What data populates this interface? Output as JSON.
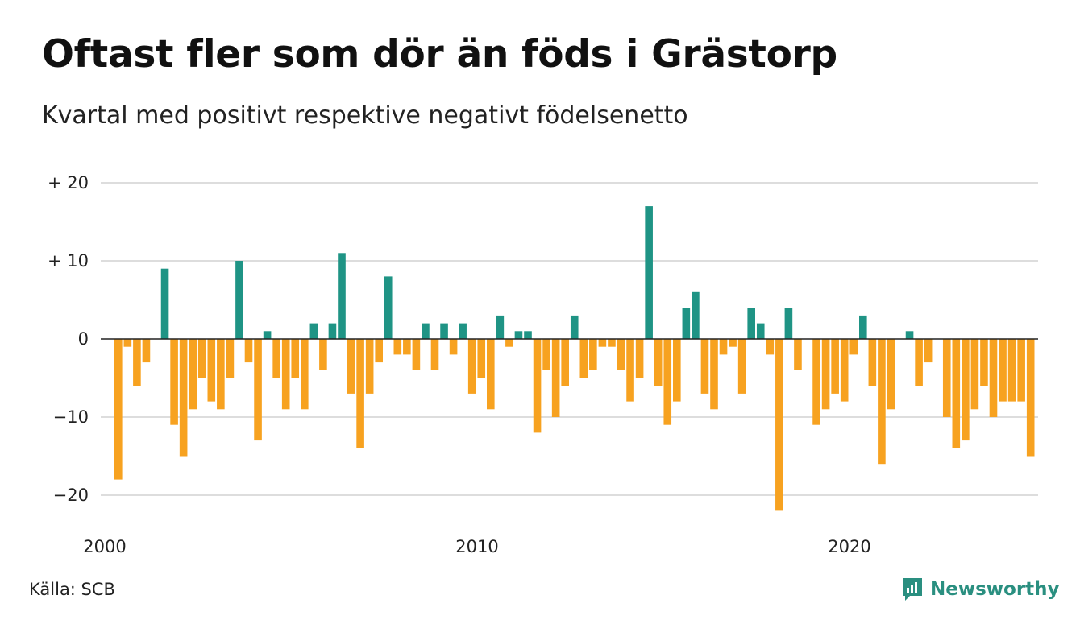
{
  "title": "Oftast fler som dör än föds i Grästorp",
  "subtitle": "Kvartal med positivt respektive negativt födelsenetto",
  "source": "Källa: SCB",
  "brand": "Newsworthy",
  "brand_icon": "newsworthy-logo-icon",
  "colors": {
    "positive": "#1f9485",
    "negative": "#f7a220",
    "grid": "#dddddd",
    "zero": "#222222"
  },
  "chart_data": {
    "type": "bar",
    "xlabel": "",
    "ylabel": "",
    "ylim": [
      -24,
      21
    ],
    "yticks": [
      {
        "value": 20,
        "label": "+ 20"
      },
      {
        "value": 10,
        "label": "+ 10"
      },
      {
        "value": 0,
        "label": "0"
      },
      {
        "value": -10,
        "label": "−10"
      },
      {
        "value": -20,
        "label": "−20"
      }
    ],
    "xticks": [
      {
        "value": 2000,
        "label": "2000"
      },
      {
        "value": 2010,
        "label": "2010"
      },
      {
        "value": 2020,
        "label": "2020"
      }
    ],
    "x_start": "2000 Q1",
    "x_end": "2024 Q4",
    "categories": [
      "2000 Q1",
      "2000 Q2",
      "2000 Q3",
      "2000 Q4",
      "2001 Q1",
      "2001 Q2",
      "2001 Q3",
      "2001 Q4",
      "2002 Q1",
      "2002 Q2",
      "2002 Q3",
      "2002 Q4",
      "2003 Q1",
      "2003 Q2",
      "2003 Q3",
      "2003 Q4",
      "2004 Q1",
      "2004 Q2",
      "2004 Q3",
      "2004 Q4",
      "2005 Q1",
      "2005 Q2",
      "2005 Q3",
      "2005 Q4",
      "2006 Q1",
      "2006 Q2",
      "2006 Q3",
      "2006 Q4",
      "2007 Q1",
      "2007 Q2",
      "2007 Q3",
      "2007 Q4",
      "2008 Q1",
      "2008 Q2",
      "2008 Q3",
      "2008 Q4",
      "2009 Q1",
      "2009 Q2",
      "2009 Q3",
      "2009 Q4",
      "2010 Q1",
      "2010 Q2",
      "2010 Q3",
      "2010 Q4",
      "2011 Q1",
      "2011 Q2",
      "2011 Q3",
      "2011 Q4",
      "2012 Q1",
      "2012 Q2",
      "2012 Q3",
      "2012 Q4",
      "2013 Q1",
      "2013 Q2",
      "2013 Q3",
      "2013 Q4",
      "2014 Q1",
      "2014 Q2",
      "2014 Q3",
      "2014 Q4",
      "2015 Q1",
      "2015 Q2",
      "2015 Q3",
      "2015 Q4",
      "2016 Q1",
      "2016 Q2",
      "2016 Q3",
      "2016 Q4",
      "2017 Q1",
      "2017 Q2",
      "2017 Q3",
      "2017 Q4",
      "2018 Q1",
      "2018 Q2",
      "2018 Q3",
      "2018 Q4",
      "2019 Q1",
      "2019 Q2",
      "2019 Q3",
      "2019 Q4",
      "2020 Q1",
      "2020 Q2",
      "2020 Q3",
      "2020 Q4",
      "2021 Q1",
      "2021 Q2",
      "2021 Q3",
      "2021 Q4",
      "2022 Q1",
      "2022 Q2",
      "2022 Q3",
      "2022 Q4",
      "2023 Q1",
      "2023 Q2",
      "2023 Q3",
      "2023 Q4",
      "2024 Q1",
      "2024 Q2",
      "2024 Q3",
      "2024 Q4"
    ],
    "values": [
      -18,
      -1,
      -6,
      -3,
      0,
      9,
      -11,
      -15,
      -9,
      -5,
      -8,
      -9,
      -5,
      10,
      -3,
      -13,
      1,
      -5,
      -9,
      -5,
      -9,
      2,
      -4,
      2,
      11,
      -7,
      -14,
      -7,
      -3,
      8,
      -2,
      -2,
      -4,
      2,
      -4,
      2,
      -2,
      2,
      -7,
      -5,
      -9,
      3,
      -1,
      1,
      1,
      -12,
      -4,
      -10,
      -6,
      3,
      -5,
      -4,
      -1,
      -1,
      -4,
      -8,
      -5,
      17,
      -6,
      -11,
      -8,
      4,
      6,
      -7,
      -9,
      -2,
      -1,
      -7,
      4,
      2,
      -2,
      -22,
      4,
      -4,
      0,
      -11,
      -9,
      -7,
      -8,
      -2,
      3,
      -6,
      -16,
      -9,
      0,
      1,
      -6,
      -3,
      0,
      -10,
      -14,
      -13,
      -9,
      -6,
      -10,
      -8,
      -8,
      -8,
      -15,
      0
    ]
  }
}
